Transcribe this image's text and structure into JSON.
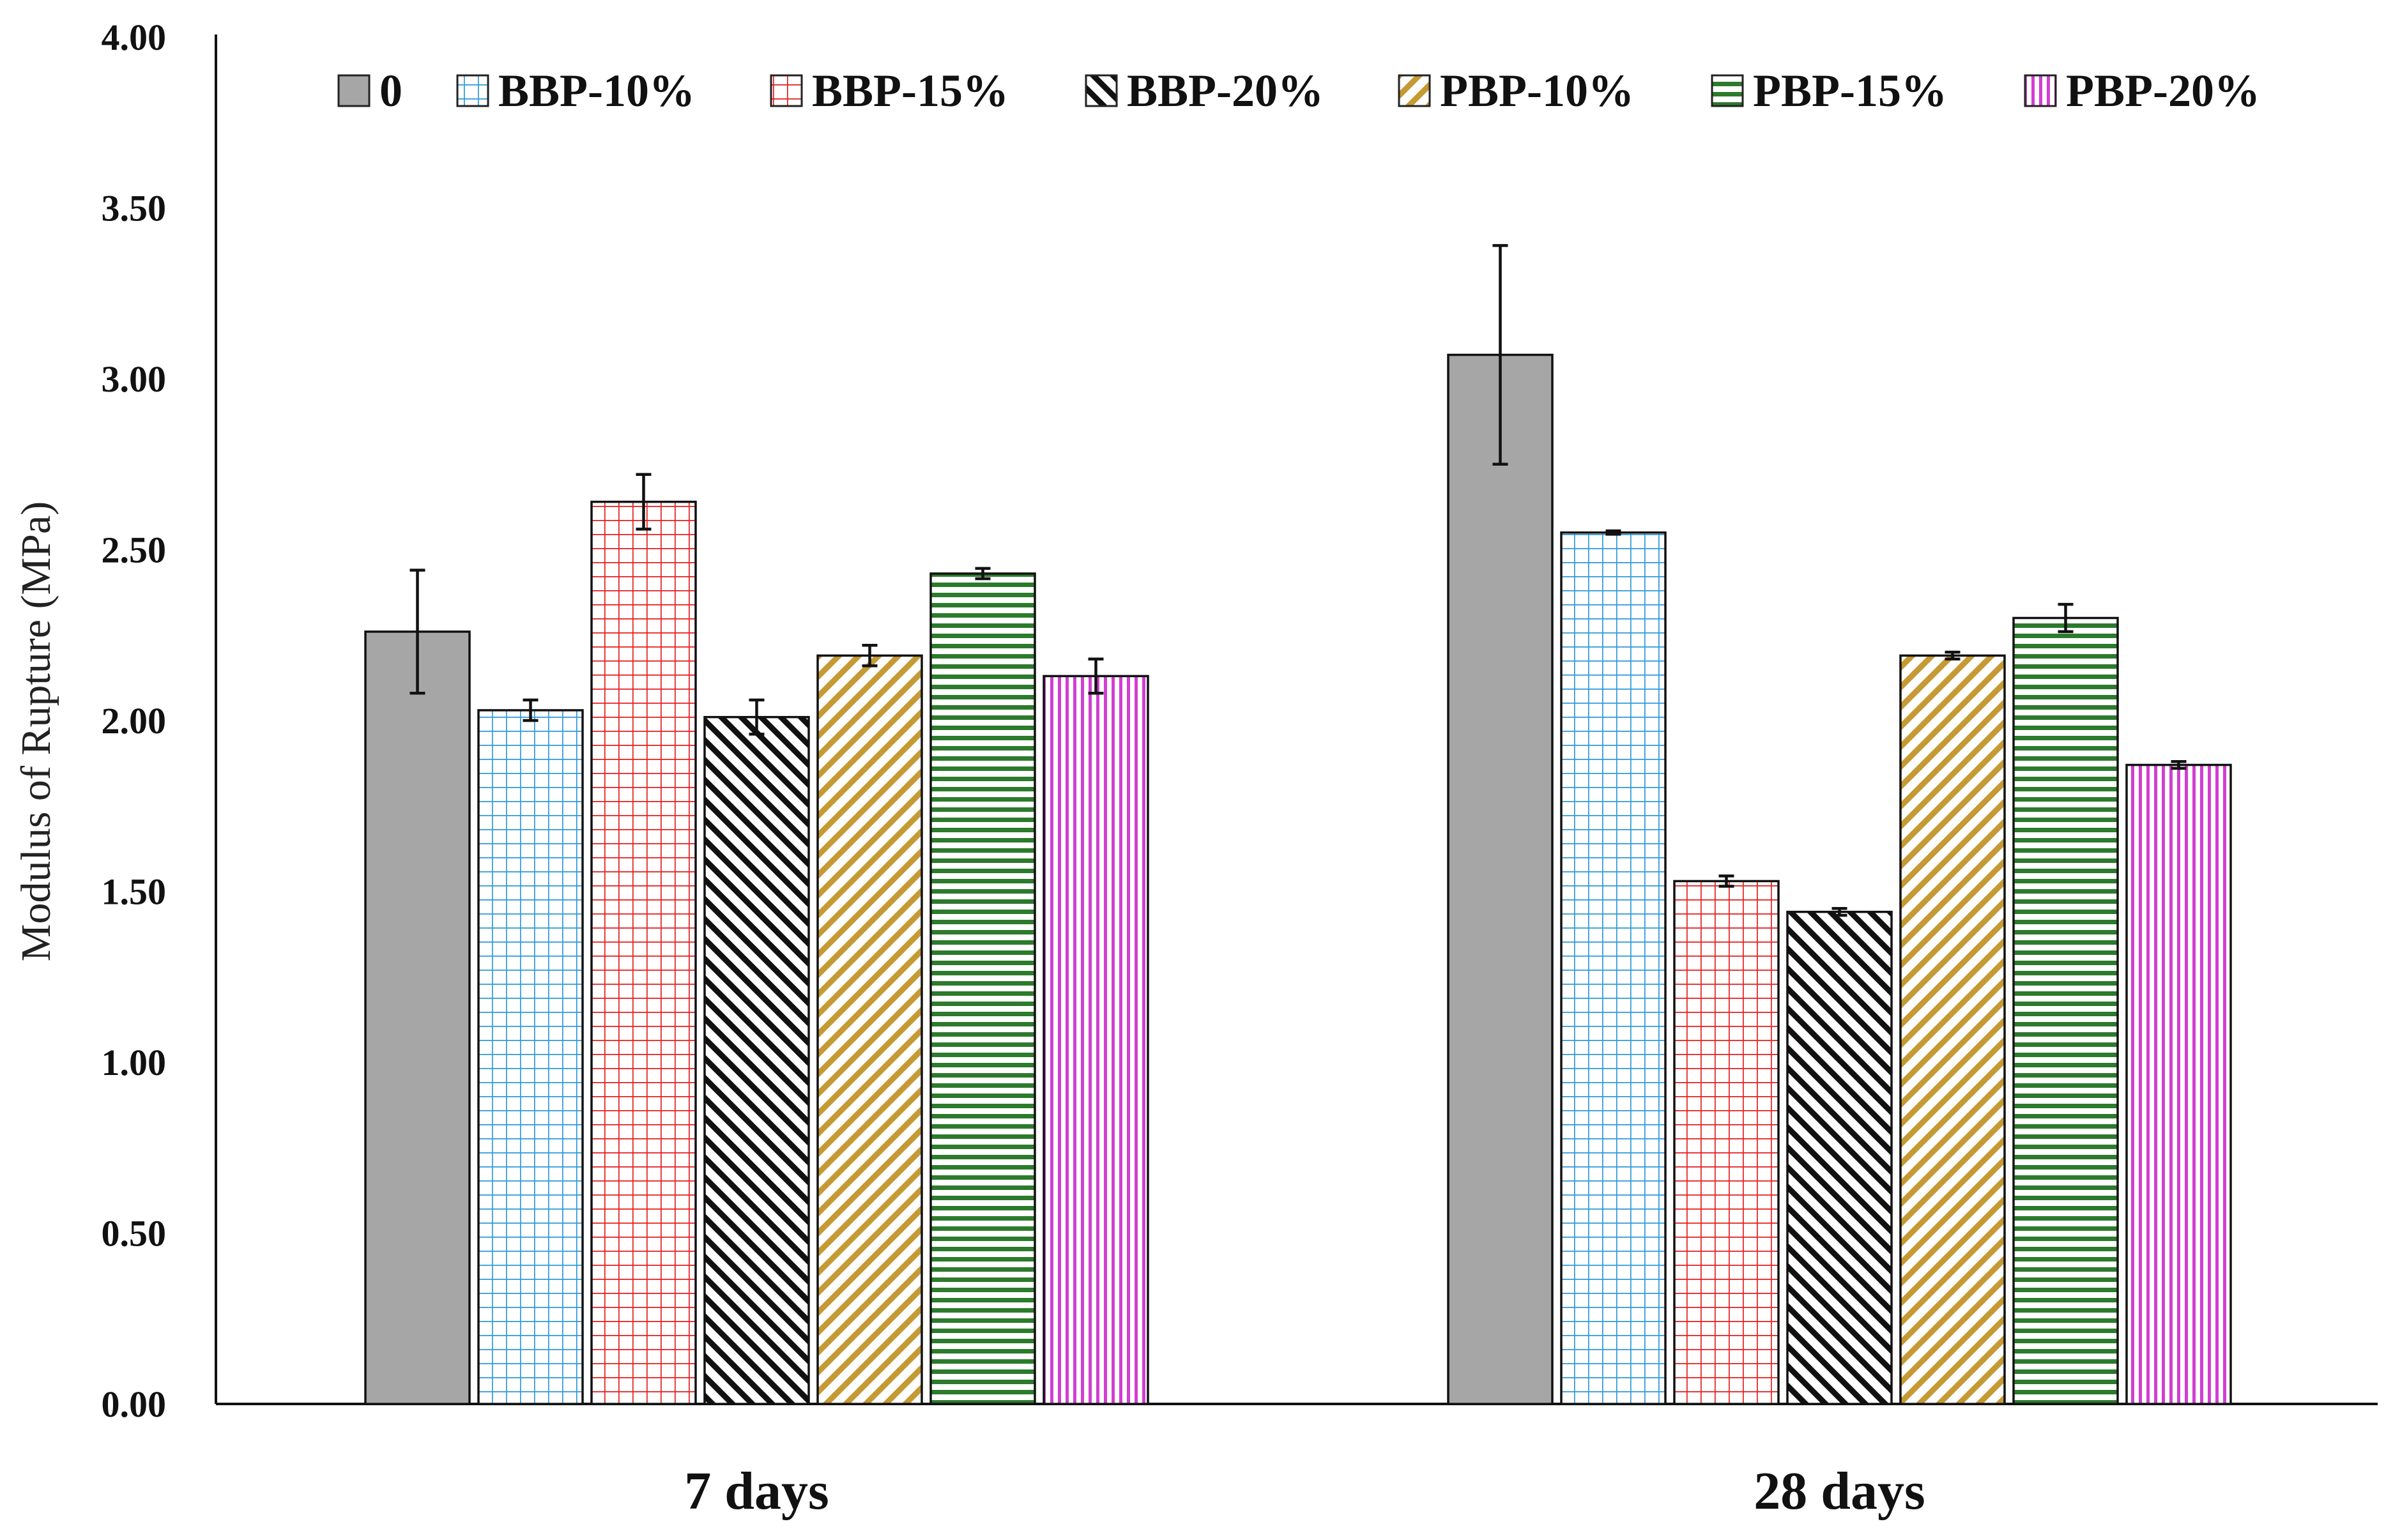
{
  "chart_data": {
    "type": "bar",
    "title": "",
    "xlabel": "",
    "ylabel": "Modulus of Rupture (MPa)",
    "ylim": [
      0,
      4
    ],
    "yticks": [
      0,
      0.5,
      1,
      1.5,
      2,
      2.5,
      3,
      3.5,
      4
    ],
    "ytick_labels": [
      "0.00",
      "0.50",
      "1.00",
      "1.50",
      "2.00",
      "2.50",
      "3.00",
      "3.50",
      "4.00"
    ],
    "categories": [
      "7 days",
      "28 days"
    ],
    "legend_position": "top",
    "grid": false,
    "series": [
      {
        "name": "0",
        "values": [
          2.26,
          3.07
        ],
        "errors": [
          0.18,
          0.32
        ],
        "color": "#a6a6a6",
        "pattern": "solid"
      },
      {
        "name": "BBP-10%",
        "values": [
          2.03,
          2.55
        ],
        "errors": [
          0.03,
          0.005
        ],
        "color": "#2e9ad8",
        "pattern": "grid"
      },
      {
        "name": "BBP-15%",
        "values": [
          2.64,
          1.53
        ],
        "errors": [
          0.08,
          0.015
        ],
        "color": "#e41e1e",
        "pattern": "grid"
      },
      {
        "name": "BBP-20%",
        "values": [
          2.01,
          1.44
        ],
        "errors": [
          0.05,
          0.01
        ],
        "color": "#111111",
        "pattern": "diag-back"
      },
      {
        "name": "PBP-10%",
        "values": [
          2.19,
          2.19
        ],
        "errors": [
          0.03,
          0.01
        ],
        "color": "#c59a34",
        "pattern": "diag"
      },
      {
        "name": "PBP-15%",
        "values": [
          2.43,
          2.3
        ],
        "errors": [
          0.015,
          0.04
        ],
        "color": "#2c7a2c",
        "pattern": "horizontal"
      },
      {
        "name": "PBP-20%",
        "values": [
          2.13,
          1.87
        ],
        "errors": [
          0.05,
          0.01
        ],
        "color": "#d13fd1",
        "pattern": "vertical"
      }
    ]
  }
}
